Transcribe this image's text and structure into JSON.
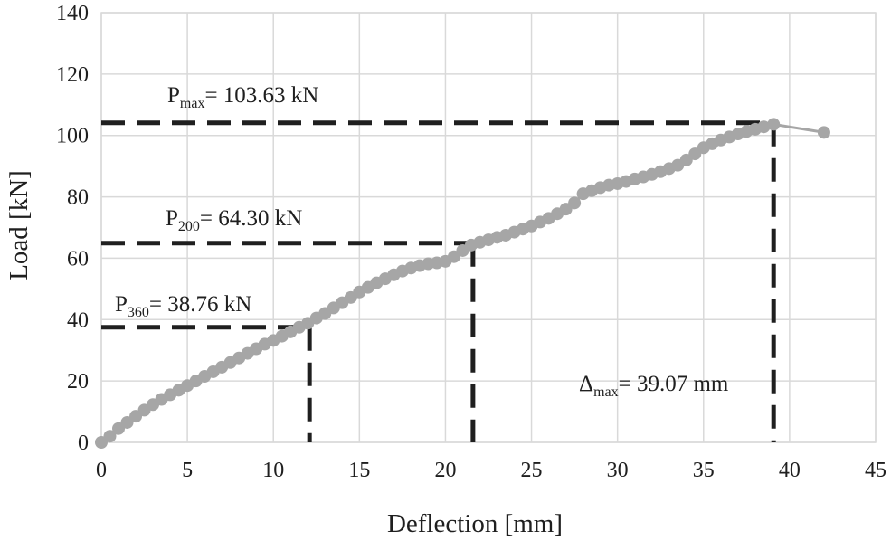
{
  "chart_data": {
    "type": "scatter",
    "xlabel": "Deflection [mm]",
    "ylabel": "Load [kN]",
    "xlim": [
      0,
      45
    ],
    "ylim": [
      0,
      140
    ],
    "x_ticks": [
      "0",
      "5",
      "10",
      "15",
      "20",
      "25",
      "30",
      "35",
      "40",
      "45"
    ],
    "y_ticks": [
      "0",
      "20",
      "40",
      "60",
      "80",
      "100",
      "120",
      "140"
    ],
    "grid": true,
    "series_color": "#a6a6a6",
    "guide_color": "#1f1f1f",
    "series": [
      {
        "points": [
          [
            0,
            0
          ],
          [
            0.5,
            2
          ],
          [
            1,
            4.5
          ],
          [
            1.5,
            6.5
          ],
          [
            2,
            8.5
          ],
          [
            2.5,
            10.5
          ],
          [
            3,
            12.3
          ],
          [
            3.5,
            14
          ],
          [
            4,
            15.5
          ],
          [
            4.5,
            17
          ],
          [
            5,
            18.5
          ],
          [
            5.5,
            20
          ],
          [
            6,
            21.5
          ],
          [
            6.5,
            23
          ],
          [
            7,
            24.5
          ],
          [
            7.5,
            26
          ],
          [
            8,
            27.5
          ],
          [
            8.5,
            29
          ],
          [
            9,
            30.5
          ],
          [
            9.5,
            32
          ],
          [
            10,
            33.2
          ],
          [
            10.5,
            34.6
          ],
          [
            11,
            36
          ],
          [
            11.5,
            37.5
          ],
          [
            12,
            38.8
          ],
          [
            12.5,
            40.5
          ],
          [
            13,
            42
          ],
          [
            13.5,
            43.8
          ],
          [
            14,
            45.5
          ],
          [
            14.5,
            47.2
          ],
          [
            15,
            49
          ],
          [
            15.5,
            50.5
          ],
          [
            16,
            52
          ],
          [
            16.5,
            53.3
          ],
          [
            17,
            54.6
          ],
          [
            17.5,
            55.8
          ],
          [
            18,
            56.8
          ],
          [
            18.5,
            57.6
          ],
          [
            19,
            58.2
          ],
          [
            19.5,
            58.5
          ],
          [
            20,
            59
          ],
          [
            20.5,
            60.5
          ],
          [
            21,
            62.5
          ],
          [
            21.5,
            64.3
          ],
          [
            22,
            65.2
          ],
          [
            22.5,
            66
          ],
          [
            23,
            66.8
          ],
          [
            23.5,
            67.5
          ],
          [
            24,
            68.5
          ],
          [
            24.5,
            69.5
          ],
          [
            25,
            70.5
          ],
          [
            25.5,
            71.8
          ],
          [
            26,
            73
          ],
          [
            26.5,
            74.5
          ],
          [
            27,
            76
          ],
          [
            27.5,
            78
          ],
          [
            28,
            81
          ],
          [
            28.5,
            82
          ],
          [
            29,
            83
          ],
          [
            29.5,
            83.8
          ],
          [
            30,
            84.3
          ],
          [
            30.5,
            85
          ],
          [
            31,
            85.8
          ],
          [
            31.5,
            86.5
          ],
          [
            32,
            87.3
          ],
          [
            32.5,
            88.2
          ],
          [
            33,
            89.2
          ],
          [
            33.5,
            90.3
          ],
          [
            34,
            92
          ],
          [
            34.5,
            94
          ],
          [
            35,
            96
          ],
          [
            35.5,
            97.3
          ],
          [
            36,
            98.5
          ],
          [
            36.5,
            99.5
          ],
          [
            37,
            100.5
          ],
          [
            37.5,
            101.3
          ],
          [
            38,
            102
          ],
          [
            38.5,
            102.8
          ],
          [
            39.07,
            103.63
          ],
          [
            42,
            101
          ]
        ]
      }
    ],
    "guides": [
      {
        "x": 12.1,
        "y": 37.5
      },
      {
        "x": 21.6,
        "y": 64.9
      },
      {
        "x": 39.07,
        "y": 104.1
      }
    ],
    "annotations": [
      {
        "main": "P",
        "sub": "360",
        "rest": "= 38.76 kN"
      },
      {
        "main": "P",
        "sub": "200",
        "rest": "= 64.30 kN"
      },
      {
        "main": "P",
        "sub": "max",
        "rest": "= 103.63 kN"
      },
      {
        "main": "Δ",
        "sub": "max",
        "rest": "= 39.07 mm"
      }
    ]
  }
}
